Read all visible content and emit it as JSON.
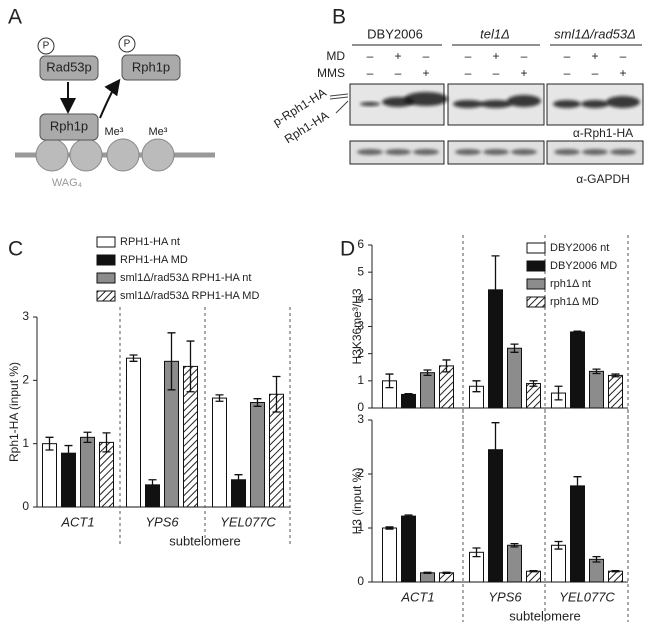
{
  "panels": [
    "A",
    "B",
    "C",
    "D"
  ],
  "diagram": {
    "p_marks": [
      "P",
      "P"
    ],
    "kinase": "Rad53p",
    "target": "Rph1p",
    "target_phospho": "Rph1p",
    "methyl_marks": [
      "Me³",
      "Me³"
    ],
    "region": "WAG₄"
  },
  "blot": {
    "groups": [
      "DBY2006",
      "tel1Δ",
      "sml1Δ/rad53Δ"
    ],
    "rows": [
      {
        "label": "MD",
        "signs": [
          "–",
          "+",
          "–",
          "–",
          "+",
          "–",
          "–",
          "+",
          "–"
        ]
      },
      {
        "label": "MMS",
        "signs": [
          "–",
          "–",
          "+",
          "–",
          "–",
          "+",
          "–",
          "–",
          "+"
        ]
      }
    ],
    "band_labels": [
      "p-Rph1-HA",
      "Rph1-HA"
    ],
    "antibodies": [
      "α-Rph1-HA",
      "α-GAPDH"
    ]
  },
  "chart_data": [
    {
      "type": "bar",
      "ylabel": "Rph1-HA  (input %)",
      "categories": [
        "ACT1",
        "YPS6",
        "YEL077C"
      ],
      "xlabel": "subtelomere",
      "ylim": [
        0,
        3
      ],
      "yticks": [
        0,
        1,
        2,
        3
      ],
      "series": [
        {
          "name": "RPH1-HA nt",
          "color": "#ffffff",
          "values": [
            1.0,
            2.35,
            1.72
          ],
          "errors": [
            0.1,
            0.05,
            0.05
          ]
        },
        {
          "name": "RPH1-HA MD",
          "color": "#111111",
          "values": [
            0.85,
            0.35,
            0.43
          ],
          "errors": [
            0.12,
            0.08,
            0.08
          ]
        },
        {
          "name": "sml1Δ/rad53Δ RPH1-HA nt",
          "color": "#8c8c8c",
          "values": [
            1.1,
            2.3,
            1.65
          ],
          "errors": [
            0.08,
            0.45,
            0.06
          ]
        },
        {
          "name": "sml1Δ/rad53Δ RPH1-HA MD",
          "color": "#ffffff",
          "hatched": true,
          "values": [
            1.02,
            2.22,
            1.78
          ],
          "errors": [
            0.15,
            0.4,
            0.28
          ]
        }
      ]
    },
    {
      "type": "bar",
      "ylabel": "H3K36me³/H3",
      "ylim": [
        0,
        6
      ],
      "yticks": [
        0,
        1,
        2,
        3,
        4,
        5,
        6
      ],
      "series": [
        {
          "name": "DBY2006 nt",
          "color": "#ffffff",
          "values": [
            1.0,
            0.8,
            0.55
          ],
          "errors": [
            0.25,
            0.2,
            0.25
          ]
        },
        {
          "name": "DBY2006  MD",
          "color": "#111111",
          "values": [
            0.5,
            4.35,
            2.8
          ],
          "errors": [
            0.03,
            1.25,
            0.03
          ]
        },
        {
          "name": "rph1Δ nt",
          "color": "#8c8c8c",
          "values": [
            1.3,
            2.2,
            1.35
          ],
          "errors": [
            0.1,
            0.15,
            0.08
          ]
        },
        {
          "name": "rph1Δ MD",
          "color": "#ffffff",
          "hatched": true,
          "values": [
            1.55,
            0.9,
            1.2
          ],
          "errors": [
            0.22,
            0.1,
            0.05
          ]
        }
      ]
    },
    {
      "type": "bar",
      "ylabel": "H3 (input %)",
      "categories": [
        "ACT1",
        "YPS6",
        "YEL077C"
      ],
      "xlabel": "subtelomere",
      "ylim": [
        0,
        3
      ],
      "yticks": [
        0,
        1,
        2,
        3
      ],
      "series": [
        {
          "color": "#ffffff",
          "values": [
            1.0,
            0.55,
            0.68
          ],
          "errors": [
            0.02,
            0.08,
            0.07
          ]
        },
        {
          "color": "#111111",
          "values": [
            1.22,
            2.45,
            1.78
          ],
          "errors": [
            0.02,
            0.5,
            0.17
          ]
        },
        {
          "color": "#8c8c8c",
          "values": [
            0.17,
            0.68,
            0.42
          ],
          "errors": [
            0.01,
            0.03,
            0.05
          ]
        },
        {
          "color": "#ffffff",
          "hatched": true,
          "values": [
            0.17,
            0.2,
            0.2
          ],
          "errors": [
            0.01,
            0.01,
            0.01
          ]
        }
      ]
    }
  ]
}
